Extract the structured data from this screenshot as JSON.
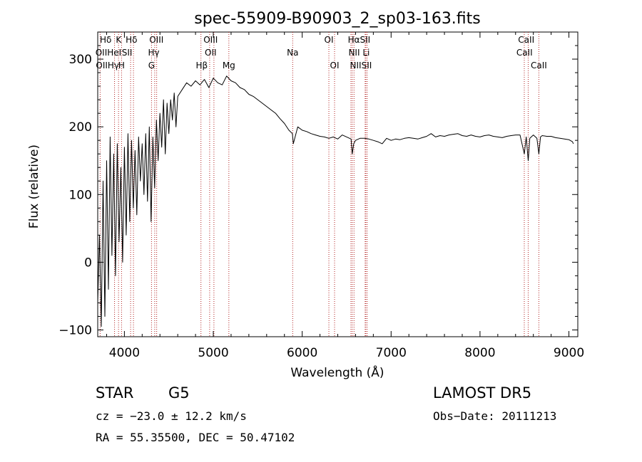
{
  "chart_data": {
    "type": "line",
    "title": "spec-55909-B90903_2_sp03-163.fits",
    "xlabel": "Wavelength (Å)",
    "ylabel": "Flux (relative)",
    "xlim": [
      3700,
      9100
    ],
    "ylim": [
      -110,
      340
    ],
    "xticks": [
      4000,
      5000,
      6000,
      7000,
      8000,
      9000
    ],
    "yticks": [
      -100,
      0,
      100,
      200,
      300
    ],
    "grid": false,
    "line_color": "#000000",
    "marker_color": "#b22222",
    "series": [
      {
        "x": [
          3700,
          3720,
          3740,
          3760,
          3780,
          3800,
          3820,
          3840,
          3860,
          3880,
          3900,
          3920,
          3940,
          3960,
          3980,
          4000,
          4020,
          4040,
          4060,
          4080,
          4100,
          4120,
          4140,
          4160,
          4180,
          4200,
          4220,
          4240,
          4260,
          4280,
          4300,
          4320,
          4340,
          4360,
          4380,
          4400,
          4420,
          4440,
          4460,
          4480,
          4500,
          4520,
          4540,
          4560,
          4580,
          4600,
          4650,
          4700,
          4750,
          4800,
          4850,
          4900,
          4950,
          5000,
          5050,
          5100,
          5150,
          5200,
          5250,
          5300,
          5350,
          5400,
          5450,
          5500,
          5550,
          5600,
          5650,
          5700,
          5750,
          5800,
          5850,
          5890,
          5900,
          5950,
          6000,
          6050,
          6100,
          6150,
          6200,
          6250,
          6300,
          6350,
          6400,
          6450,
          6500,
          6550,
          6563,
          6580,
          6600,
          6650,
          6700,
          6750,
          6800,
          6850,
          6900,
          6950,
          7000,
          7050,
          7100,
          7150,
          7200,
          7250,
          7300,
          7350,
          7400,
          7450,
          7500,
          7550,
          7600,
          7650,
          7700,
          7750,
          7800,
          7850,
          7900,
          7950,
          8000,
          8050,
          8100,
          8150,
          8200,
          8250,
          8300,
          8350,
          8400,
          8450,
          8498,
          8520,
          8542,
          8560,
          8600,
          8640,
          8662,
          8680,
          8700,
          8750,
          8800,
          8850,
          8900,
          8950,
          9000,
          9040,
          9050
        ],
        "y": [
          -60,
          40,
          -95,
          120,
          -80,
          150,
          -40,
          185,
          10,
          160,
          -20,
          175,
          30,
          140,
          0,
          170,
          40,
          190,
          60,
          180,
          80,
          165,
          70,
          185,
          120,
          175,
          100,
          190,
          90,
          200,
          60,
          185,
          110,
          210,
          150,
          220,
          170,
          240,
          160,
          235,
          190,
          240,
          210,
          250,
          200,
          245,
          255,
          265,
          260,
          268,
          262,
          270,
          258,
          272,
          265,
          262,
          275,
          268,
          265,
          258,
          255,
          248,
          245,
          240,
          235,
          230,
          225,
          220,
          212,
          205,
          195,
          190,
          175,
          200,
          195,
          193,
          190,
          188,
          186,
          185,
          183,
          185,
          182,
          188,
          185,
          182,
          160,
          175,
          180,
          183,
          183,
          182,
          180,
          178,
          175,
          183,
          180,
          182,
          181,
          183,
          184,
          183,
          182,
          184,
          186,
          190,
          185,
          187,
          186,
          188,
          189,
          190,
          187,
          186,
          188,
          186,
          185,
          187,
          188,
          186,
          185,
          184,
          186,
          187,
          188,
          188,
          160,
          185,
          150,
          183,
          188,
          183,
          160,
          185,
          187,
          186,
          186,
          184,
          183,
          182,
          181,
          178,
          175
        ]
      }
    ],
    "line_markers": [
      {
        "name": "Hδ",
        "x": 4102
      },
      {
        "name": "K",
        "x": 3934
      },
      {
        "name": "H",
        "x": 3968
      },
      {
        "name": "Hγ",
        "x": 4341
      },
      {
        "name": "G",
        "x": 4305
      },
      {
        "name": "OII",
        "x": 3727
      },
      {
        "name": "HeI",
        "x": 3889
      },
      {
        "name": "SII",
        "x": 4070
      },
      {
        "name": "OIII",
        "x": 4363
      },
      {
        "name": "Hβ",
        "x": 4861
      },
      {
        "name": "OIII",
        "x": 4959
      },
      {
        "name": "OIII",
        "x": 5007
      },
      {
        "name": "Mg",
        "x": 5175
      },
      {
        "name": "Na",
        "x": 5893
      },
      {
        "name": "OI",
        "x": 6300
      },
      {
        "name": "OI",
        "x": 6364
      },
      {
        "name": "Hα",
        "x": 6563
      },
      {
        "name": "NII",
        "x": 6548
      },
      {
        "name": "NII",
        "x": 6583
      },
      {
        "name": "SII",
        "x": 6716
      },
      {
        "name": "SII",
        "x": 6731
      },
      {
        "name": "Li",
        "x": 6708
      },
      {
        "name": "CaII",
        "x": 8498
      },
      {
        "name": "CaII",
        "x": 8542
      },
      {
        "name": "CaII",
        "x": 8662
      }
    ],
    "line_labels": [
      {
        "text": "Hδ",
        "x": 3790,
        "row": 0
      },
      {
        "text": "K",
        "x": 3935,
        "row": 0
      },
      {
        "text": "Hδ",
        "x": 4080,
        "row": 0
      },
      {
        "text": "OIII",
        "x": 4360,
        "row": 0
      },
      {
        "text": "OIII",
        "x": 4970,
        "row": 0
      },
      {
        "text": "OI",
        "x": 6300,
        "row": 0
      },
      {
        "text": "HαSII",
        "x": 6640,
        "row": 0
      },
      {
        "text": "CaII",
        "x": 8520,
        "row": 0
      },
      {
        "text": "OIIHeI",
        "x": 3820,
        "row": 1
      },
      {
        "text": "SII",
        "x": 4030,
        "row": 1
      },
      {
        "text": "Hγ",
        "x": 4330,
        "row": 1
      },
      {
        "text": "OII",
        "x": 4970,
        "row": 1
      },
      {
        "text": "Na",
        "x": 5893,
        "row": 1
      },
      {
        "text": "NII Li",
        "x": 6640,
        "row": 1
      },
      {
        "text": "CaII",
        "x": 8500,
        "row": 1
      },
      {
        "text": "OIIHγ",
        "x": 3810,
        "row": 2
      },
      {
        "text": "H",
        "x": 3968,
        "row": 2
      },
      {
        "text": "G",
        "x": 4305,
        "row": 2
      },
      {
        "text": "Hβ",
        "x": 4870,
        "row": 2
      },
      {
        "text": "Mg",
        "x": 5175,
        "row": 2
      },
      {
        "text": "OI",
        "x": 6364,
        "row": 2
      },
      {
        "text": "NIISII",
        "x": 6660,
        "row": 2
      },
      {
        "text": "CaII",
        "x": 8662,
        "row": 2
      }
    ]
  },
  "info": {
    "object_class": "STAR",
    "subclass": "G5",
    "survey": "LAMOST DR5",
    "cz": "cz = −23.0 ± 12.2 km/s",
    "obs_date": "Obs−Date: 20111213",
    "coords": "RA =  55.35500, DEC =  50.47102"
  }
}
